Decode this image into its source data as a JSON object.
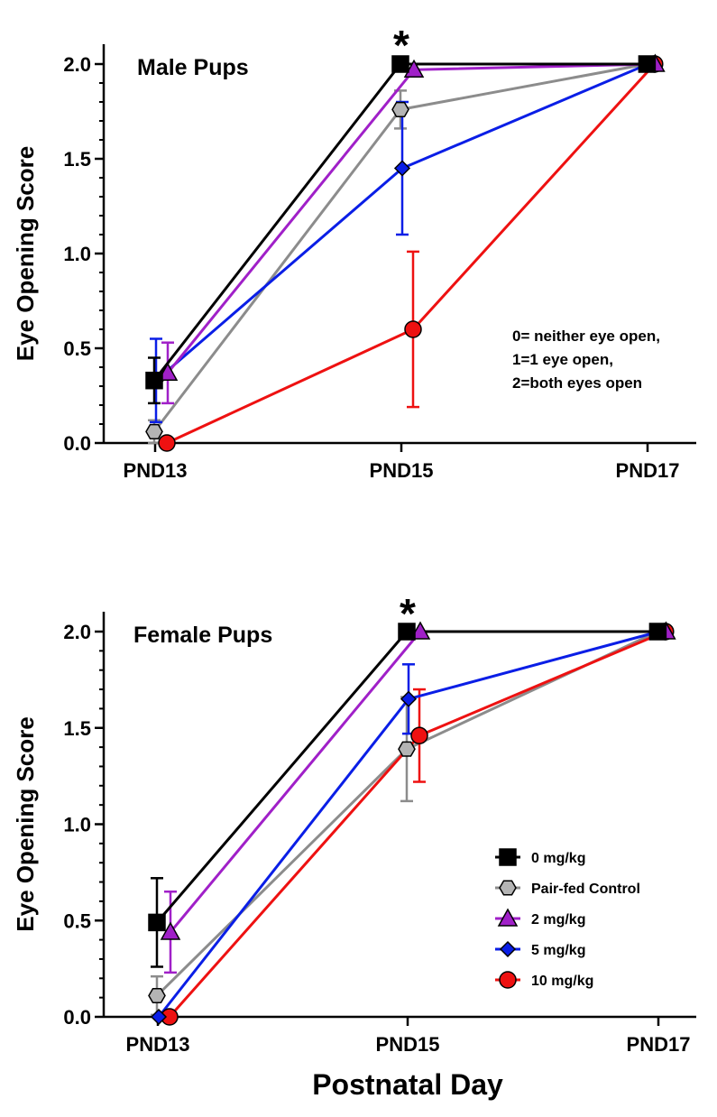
{
  "figure": {
    "xlabel": "Postnatal Day",
    "colors": {
      "0 mg/kg": "#000000",
      "Pair-fed Control": "#8c8c8c",
      "2 mg/kg": "#a020c8",
      "5 mg/kg": "#0a1ee6",
      "10 mg/kg": "#ee1111"
    },
    "legend": [
      {
        "label": "0 mg/kg",
        "marker": "square",
        "fill": "#000000"
      },
      {
        "label": "Pair-fed Control",
        "marker": "hexagon",
        "fill": "#b4b4b4"
      },
      {
        "label": "2 mg/kg",
        "marker": "triangle",
        "fill": "#a020c8"
      },
      {
        "label": "5 mg/kg",
        "marker": "diamond",
        "fill": "#0a1ee6"
      },
      {
        "label": "10 mg/kg",
        "marker": "circle",
        "fill": "#ee1111"
      }
    ]
  },
  "chart_data": [
    {
      "type": "line",
      "title": "Male Pups",
      "ylabel": "Eye Opening Score",
      "categories": [
        "PND13",
        "PND15",
        "PND17"
      ],
      "ylim": [
        0,
        2
      ],
      "yticks": [
        "0.0",
        "0.5",
        "1.0",
        "1.5",
        "2.0"
      ],
      "annotation": "*",
      "annotation_category": "PND15",
      "note": [
        "0= neither eye open,",
        "1=1 eye open,",
        "2=both eyes open"
      ],
      "series": [
        {
          "name": "0 mg/kg",
          "values": [
            0.33,
            2.0,
            2.0
          ],
          "err": [
            0.12,
            0,
            0
          ]
        },
        {
          "name": "Pair-fed Control",
          "values": [
            0.06,
            1.76,
            2.0
          ],
          "err": [
            0.06,
            0.1,
            0
          ]
        },
        {
          "name": "2 mg/kg",
          "values": [
            0.37,
            1.97,
            2.0
          ],
          "err": [
            0.16,
            0,
            0
          ]
        },
        {
          "name": "5 mg/kg",
          "values": [
            0.33,
            1.45,
            2.0
          ],
          "err": [
            0.22,
            0.35,
            0
          ]
        },
        {
          "name": "10 mg/kg",
          "values": [
            0.0,
            0.6,
            2.0
          ],
          "err": [
            0,
            0.41,
            0
          ]
        }
      ]
    },
    {
      "type": "line",
      "title": "Female Pups",
      "ylabel": "Eye Opening Score",
      "categories": [
        "PND13",
        "PND15",
        "PND17"
      ],
      "ylim": [
        0,
        2
      ],
      "yticks": [
        "0.0",
        "0.5",
        "1.0",
        "1.5",
        "2.0"
      ],
      "annotation": "*",
      "annotation_category": "PND15",
      "series": [
        {
          "name": "0 mg/kg",
          "values": [
            0.49,
            2.0,
            2.0
          ],
          "err": [
            0.23,
            0,
            0
          ]
        },
        {
          "name": "Pair-fed Control",
          "values": [
            0.11,
            1.39,
            2.0
          ],
          "err": [
            0.1,
            0.27,
            0
          ]
        },
        {
          "name": "2 mg/kg",
          "values": [
            0.44,
            2.0,
            2.0
          ],
          "err": [
            0.21,
            0,
            0
          ]
        },
        {
          "name": "5 mg/kg",
          "values": [
            0.0,
            1.65,
            2.0
          ],
          "err": [
            0,
            0.18,
            0
          ]
        },
        {
          "name": "10 mg/kg",
          "values": [
            0.0,
            1.46,
            2.0
          ],
          "err": [
            0,
            0.24,
            0
          ]
        }
      ]
    }
  ]
}
